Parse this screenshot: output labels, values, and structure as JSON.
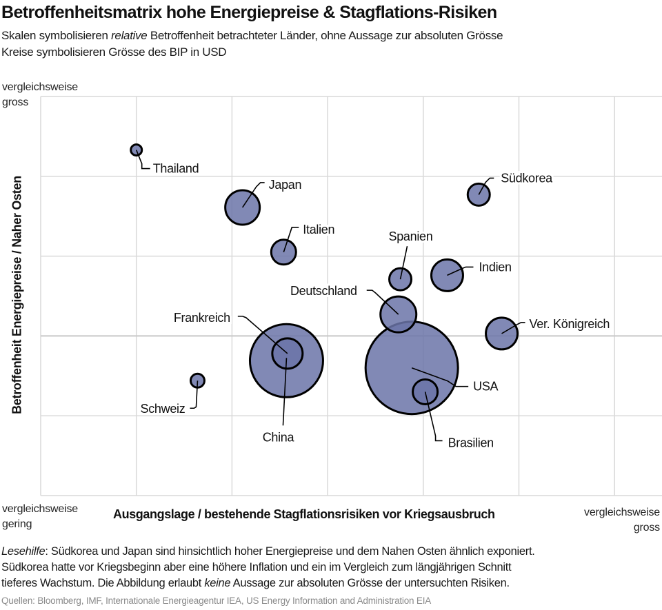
{
  "header": {
    "title": "Betroffenheitsmatrix hohe Energiepreise & Stagflations-Risiken",
    "subtitle_line1_pre": "Skalen symbolisieren ",
    "subtitle_line1_italic": "relative",
    "subtitle_line1_post": " Betroffenheit betrachteter Länder, ohne Aussage zur absoluten Grösse",
    "subtitle_line2": "Kreise symbolisieren Grösse des BIP in USD"
  },
  "axes": {
    "y_top_line1": "vergleichsweise",
    "y_top_line2": "gross",
    "x_left_line1": "vergleichsweise",
    "x_left_line2": "gering",
    "x_right_line1": "vergleichsweise",
    "x_right_line2": "gross"
  },
  "footer": {
    "note_line1_italic": "Lesehilfe",
    "note_line1_rest": ": Südkorea und Japan sind hinsichtlich hoher Energiepreise und dem Nahen Osten ähnlich exponiert.",
    "note_line2": "Südkorea hatte vor Kriegsbeginn aber eine höhere Inflation und ein im Vergleich zum längjährigen Schnitt",
    "note_line3_pre": "tieferes Wachstum. Die Abbildung erlaubt ",
    "note_line3_italic": "keine",
    "note_line3_post": " Aussage zur absoluten Grösse der untersuchten Risiken.",
    "source": "Quellen: Bloomberg, IMF, Internationale Energieagentur IEA, US Energy Information and Administration EIA"
  },
  "colors": {
    "bubble_fill": "#6b74a8",
    "bubble_fill_opacity": 0.85,
    "bubble_stroke": "#000000",
    "grid": "#d9d9d9",
    "axis_mid": "#c8c8c8"
  },
  "chart_data": {
    "type": "scatter",
    "subtype": "bubble",
    "title": "Betroffenheitsmatrix hohe Energiepreise & Stagflations-Risiken",
    "xlabel": "Ausgangslage / bestehende Stagflationsrisiken vor Kriegsausbruch",
    "ylabel": "Betroffenheit Energiepreise / Naher Osten",
    "xlim": [
      0,
      6
    ],
    "ylim": [
      0,
      5
    ],
    "x_gridlines": [
      0,
      1,
      2,
      3,
      4,
      5,
      6
    ],
    "y_gridlines": [
      0,
      1,
      2,
      3,
      4,
      5
    ],
    "grid": true,
    "size_meaning": "BIP in USD (relative bubble radius)",
    "points": [
      {
        "name": "Thailand",
        "x": 1.0,
        "y": 4.33,
        "size": 8
      },
      {
        "name": "Japan",
        "x": 2.11,
        "y": 3.61,
        "size": 25
      },
      {
        "name": "Italien",
        "x": 2.54,
        "y": 3.05,
        "size": 18
      },
      {
        "name": "Südkorea",
        "x": 4.58,
        "y": 3.77,
        "size": 16
      },
      {
        "name": "Spanien",
        "x": 3.76,
        "y": 2.71,
        "size": 16
      },
      {
        "name": "Indien",
        "x": 4.25,
        "y": 2.76,
        "size": 23
      },
      {
        "name": "Deutschland",
        "x": 3.74,
        "y": 2.27,
        "size": 26
      },
      {
        "name": "Ver. Königreich",
        "x": 4.82,
        "y": 2.03,
        "size": 23
      },
      {
        "name": "China",
        "x": 2.57,
        "y": 1.69,
        "size": 53
      },
      {
        "name": "Frankreich",
        "x": 2.58,
        "y": 1.78,
        "size": 22
      },
      {
        "name": "Schweiz",
        "x": 1.64,
        "y": 1.44,
        "size": 10
      },
      {
        "name": "USA",
        "x": 3.88,
        "y": 1.6,
        "size": 67
      },
      {
        "name": "Brasilien",
        "x": 4.02,
        "y": 1.3,
        "size": 18
      }
    ]
  }
}
